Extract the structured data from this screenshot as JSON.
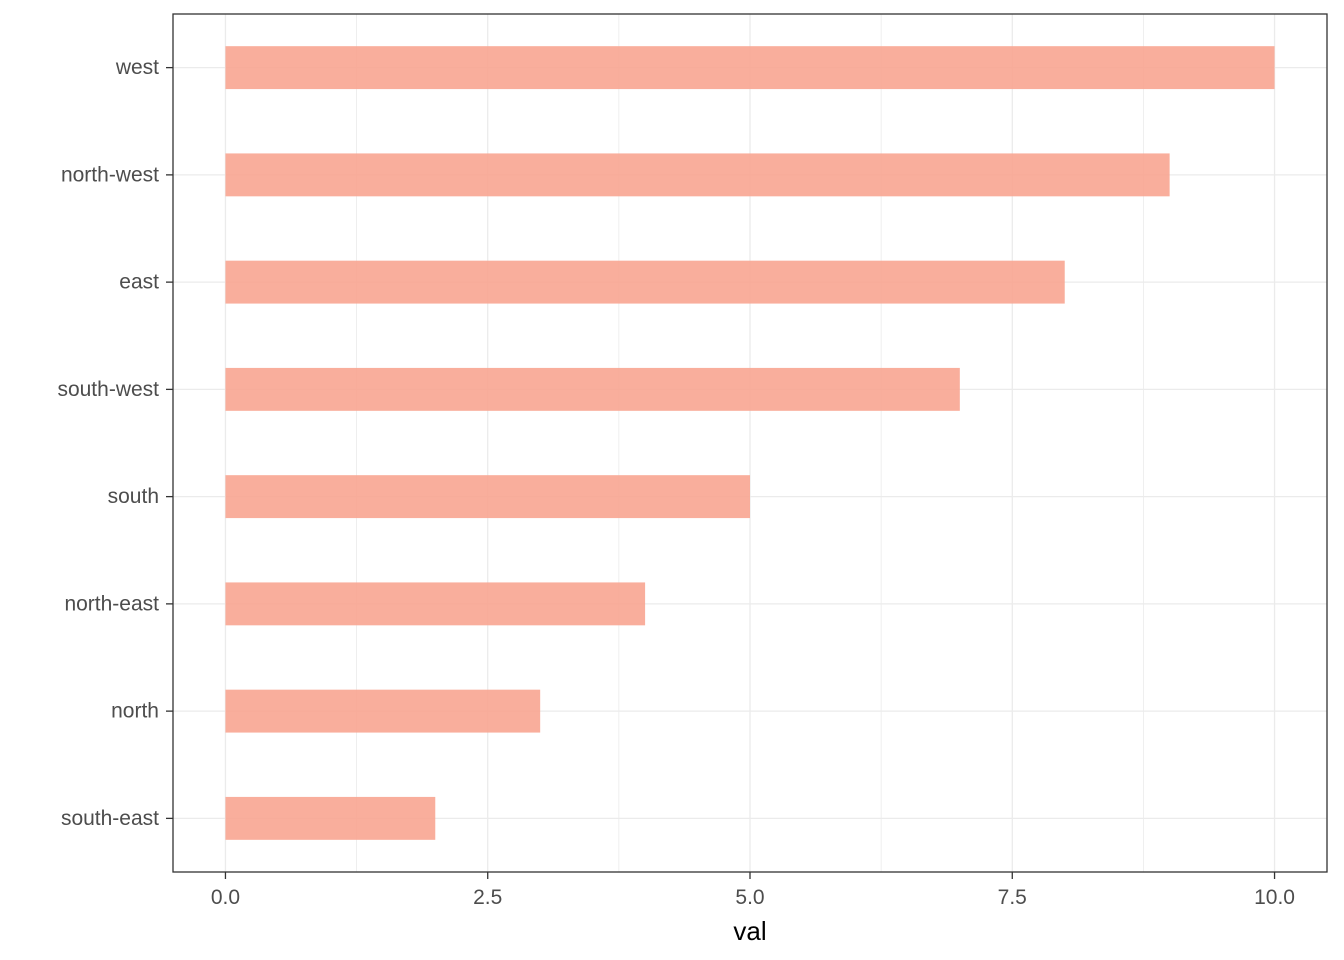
{
  "chart_data": {
    "type": "bar",
    "orientation": "horizontal",
    "categories": [
      "west",
      "north-west",
      "east",
      "south-west",
      "south",
      "north-east",
      "north",
      "south-east"
    ],
    "values": [
      10,
      9,
      8,
      7,
      5,
      4,
      3,
      2
    ],
    "x_ticks": [
      "0.0",
      "2.5",
      "5.0",
      "7.5",
      "10.0"
    ],
    "x_tick_values": [
      0,
      2.5,
      5,
      7.5,
      10
    ],
    "xlabel": "val",
    "ylabel": "",
    "xlim": [
      -0.5,
      10.5
    ],
    "grid": true,
    "bar_color": "#F8A591",
    "grid_color": "#EBEBEB",
    "panel_border_color": "#333333"
  }
}
